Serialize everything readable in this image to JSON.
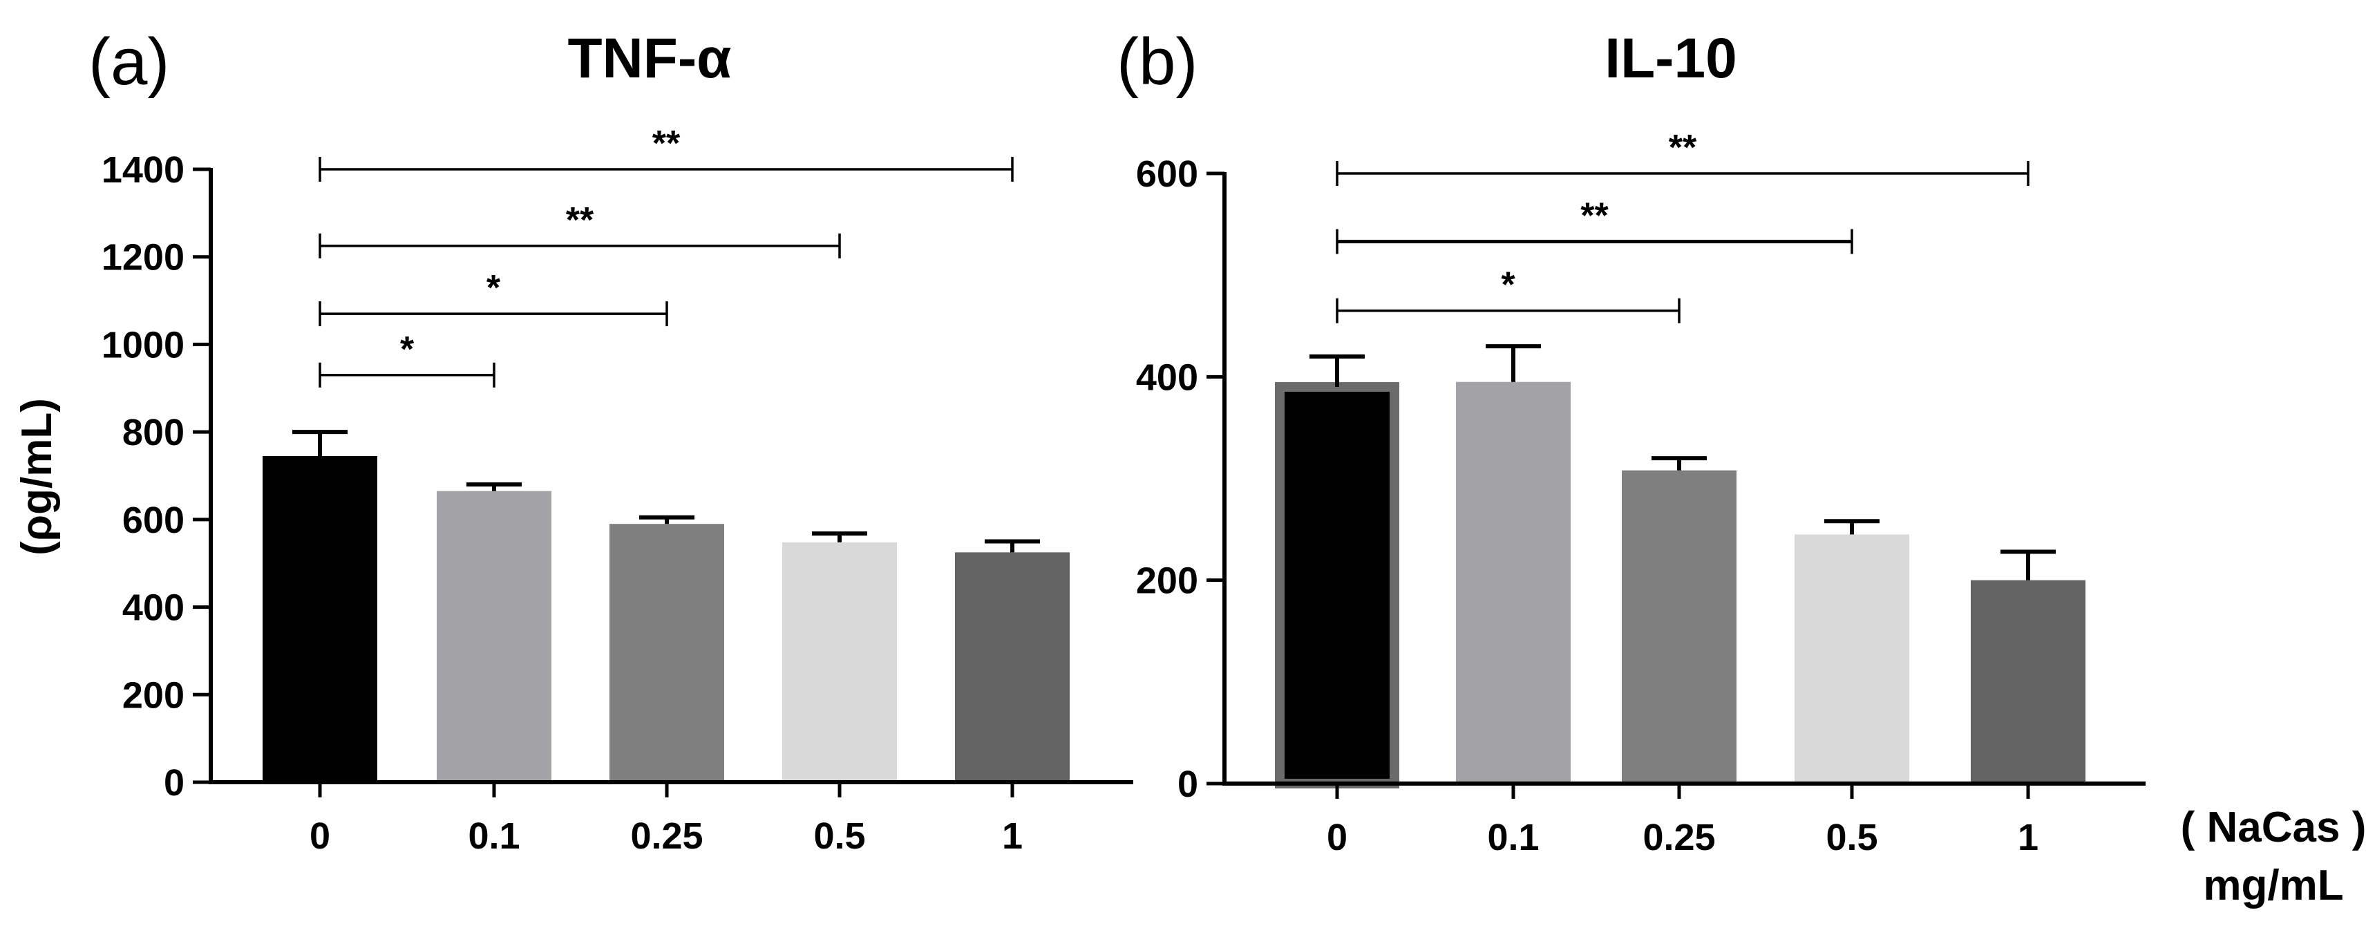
{
  "unit_note": {
    "line1": "( NaCas )",
    "line2": "mg/mL"
  },
  "chart_data": [
    {
      "type": "bar",
      "panel_letter": "(a)",
      "title": "TNF-α",
      "ylabel": "(ρg/mL)",
      "xlabel": "",
      "categories": [
        "0",
        "0.1",
        "0.25",
        "0.5",
        "1"
      ],
      "values": [
        745,
        665,
        590,
        548,
        525
      ],
      "errors": [
        55,
        15,
        15,
        20,
        25
      ],
      "colors": [
        "#000000",
        "#a3a2a6",
        "#7f7f7f",
        "#d9d9d9",
        "#636363"
      ],
      "ylim": [
        0,
        1400
      ],
      "yticks": [
        "0",
        "200",
        "400",
        "600",
        "800",
        "1000",
        "1200",
        "1400"
      ],
      "significance": [
        {
          "from": 0,
          "to": 1,
          "y": 930,
          "label": "*"
        },
        {
          "from": 0,
          "to": 2,
          "y": 1070,
          "label": "*"
        },
        {
          "from": 0,
          "to": 3,
          "y": 1225,
          "label": "**"
        },
        {
          "from": 0,
          "to": 4,
          "y": 1400,
          "label": "**"
        }
      ]
    },
    {
      "type": "bar",
      "panel_letter": "(b)",
      "title": "IL-10",
      "ylabel": "",
      "xlabel": "",
      "categories": [
        "0",
        "0.1",
        "0.25",
        "0.5",
        "1"
      ],
      "values": [
        390,
        395,
        308,
        245,
        200
      ],
      "errors": [
        30,
        35,
        12,
        13,
        28
      ],
      "colors": [
        "#000000",
        "#a3a2a6",
        "#7f7f7f",
        "#d9d9d9",
        "#636363"
      ],
      "ylim": [
        0,
        600
      ],
      "yticks": [
        "0",
        "200",
        "400",
        "600"
      ],
      "significance": [
        {
          "from": 0,
          "to": 2,
          "y": 465,
          "label": "*"
        },
        {
          "from": 0,
          "to": 3,
          "y": 533,
          "label": "**"
        },
        {
          "from": 0,
          "to": 4,
          "y": 600,
          "label": "**"
        }
      ]
    }
  ]
}
